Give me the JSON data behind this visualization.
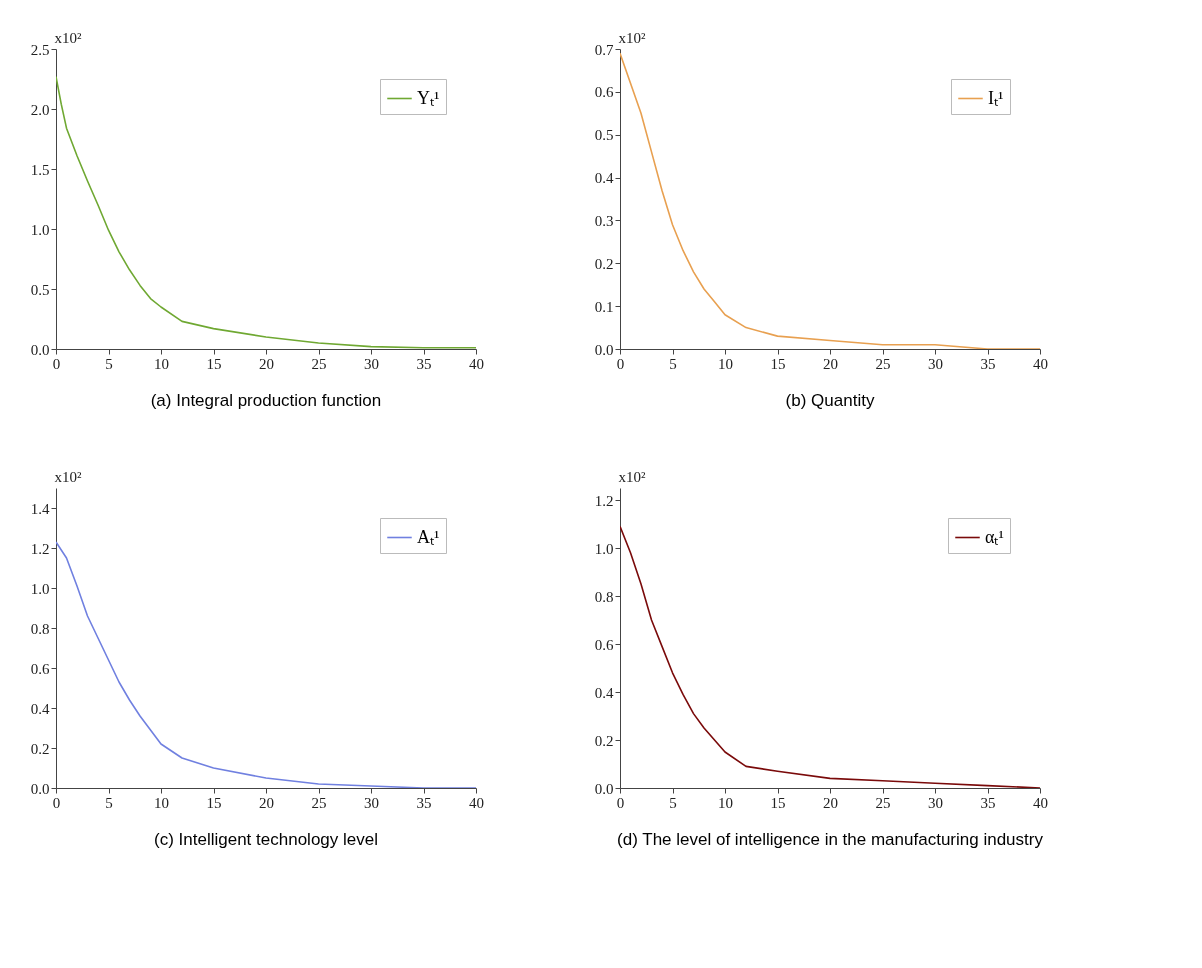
{
  "chart_data": [
    {
      "type": "line",
      "title": "(a) Integral production function",
      "ylabel": "x10²",
      "xlim": [
        0,
        40
      ],
      "xticks": [
        0,
        5,
        10,
        15,
        20,
        25,
        30,
        35,
        40
      ],
      "ylim": [
        0,
        2.5
      ],
      "yticks": [
        {
          "value": 0,
          "label": "0.0"
        },
        0.5,
        {
          "value": 1,
          "label": "1.0"
        },
        1.5,
        {
          "value": 2,
          "label": "2.0"
        },
        2.5
      ],
      "legend": "top right",
      "x": [
        0,
        0.5,
        1,
        2,
        3,
        4,
        5,
        6,
        7,
        8,
        9,
        10,
        12,
        15,
        20,
        25,
        30,
        35,
        40
      ],
      "series": [
        {
          "name": "Yₜ¹",
          "color": "#6fa832",
          "values": [
            2.27,
            2.04,
            1.84,
            1.61,
            1.4,
            1.2,
            0.99,
            0.81,
            0.66,
            0.53,
            0.42,
            0.35,
            0.23,
            0.17,
            0.1,
            0.05,
            0.02,
            0.01,
            0.01
          ]
        }
      ]
    },
    {
      "type": "line",
      "title": "(b) Quantity",
      "ylabel": "x10²",
      "xlim": [
        0,
        40
      ],
      "xticks": [
        0,
        5,
        10,
        15,
        20,
        25,
        30,
        35,
        40
      ],
      "ylim": [
        0,
        0.7
      ],
      "yticks": [
        {
          "value": 0,
          "label": "0.0"
        },
        0.1,
        0.2,
        0.3,
        0.4,
        0.5,
        0.6,
        0.7
      ],
      "legend": "top right",
      "x": [
        0,
        1,
        2,
        3,
        4,
        5,
        6,
        7,
        8,
        9,
        10,
        12,
        15,
        20,
        25,
        30,
        35,
        40
      ],
      "series": [
        {
          "name": "Iₜ¹",
          "color": "#e8a050",
          "values": [
            0.69,
            0.62,
            0.55,
            0.46,
            0.37,
            0.29,
            0.23,
            0.18,
            0.14,
            0.11,
            0.08,
            0.05,
            0.03,
            0.02,
            0.01,
            0.01,
            0,
            0
          ]
        }
      ]
    },
    {
      "type": "line",
      "title": "(c) Intelligent technology level",
      "ylabel": "x10²",
      "xlim": [
        0,
        40
      ],
      "xticks": [
        0,
        5,
        10,
        15,
        20,
        25,
        30,
        35,
        40
      ],
      "ylim": [
        0,
        1.5
      ],
      "yticks": [
        {
          "value": 0,
          "label": "0.0"
        },
        0.2,
        0.4,
        0.6,
        0.8,
        {
          "value": 1,
          "label": "1.0"
        },
        1.2,
        1.4
      ],
      "legend": "top right",
      "x": [
        0,
        1,
        2,
        3,
        4,
        5,
        6,
        7,
        8,
        9,
        10,
        12,
        15,
        20,
        25,
        30,
        35,
        40
      ],
      "series": [
        {
          "name": "Aₜ¹",
          "color": "#7080e0",
          "values": [
            1.23,
            1.15,
            1.01,
            0.86,
            0.75,
            0.64,
            0.53,
            0.44,
            0.36,
            0.29,
            0.22,
            0.15,
            0.1,
            0.05,
            0.02,
            0.01,
            0,
            0
          ]
        }
      ]
    },
    {
      "type": "line",
      "title": "(d) The level of intelligence in the manufacturing industry",
      "ylabel": "x10²",
      "xlim": [
        0,
        40
      ],
      "xticks": [
        0,
        5,
        10,
        15,
        20,
        25,
        30,
        35,
        40
      ],
      "ylim": [
        0,
        1.25
      ],
      "yticks": [
        {
          "value": 0,
          "label": "0.0"
        },
        0.2,
        0.4,
        0.6,
        0.8,
        {
          "value": 1,
          "label": "1.0"
        },
        1.2
      ],
      "legend": "top right",
      "x": [
        0,
        1,
        2,
        3,
        4,
        5,
        6,
        7,
        8,
        9,
        10,
        12,
        15,
        20,
        25,
        30,
        35,
        40
      ],
      "series": [
        {
          "name": "αₜ¹",
          "color": "#7a0a0a",
          "values": [
            1.09,
            0.98,
            0.85,
            0.7,
            0.59,
            0.48,
            0.39,
            0.31,
            0.25,
            0.2,
            0.15,
            0.09,
            0.07,
            0.04,
            0.03,
            0.02,
            0.01,
            0
          ]
        }
      ]
    }
  ]
}
